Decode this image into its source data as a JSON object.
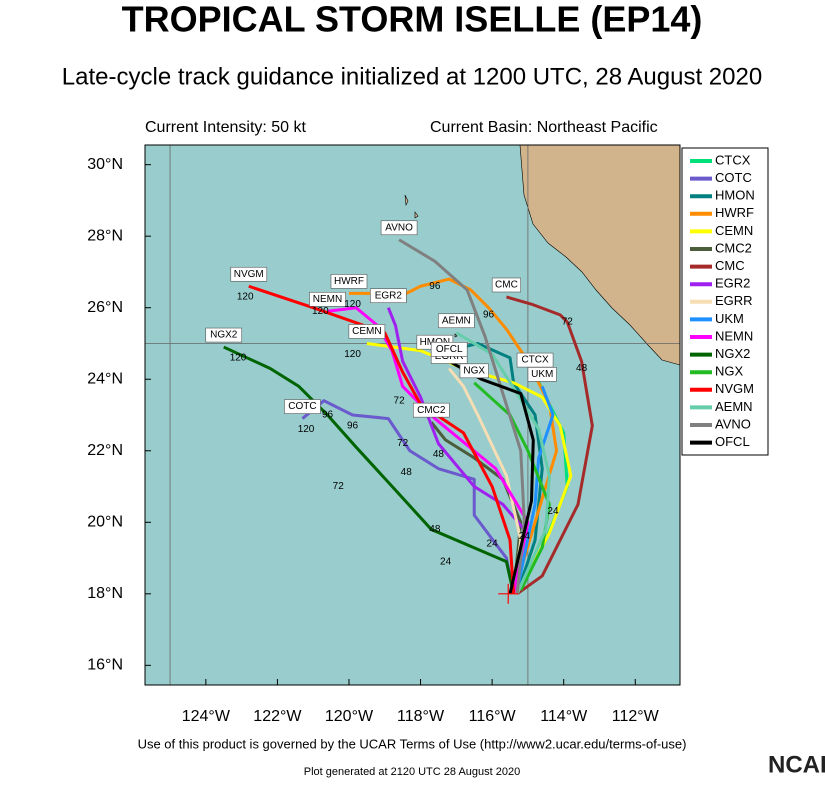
{
  "chart_data": {
    "type": "track",
    "title": "TROPICAL STORM ISELLE (EP14)",
    "subtitle": "Late-cycle track guidance initialized at 1200 UTC, 28 August 2020",
    "current_intensity": "Current Intensity: 50 kt",
    "current_basin": "Current Basin: Northeast Pacific",
    "footer": "Use of this product is governed by the UCAR Terms of Use (http://www2.ucar.edu/terms-of-use)",
    "generated": "Plot generated at 2120 UTC   28 August 2020",
    "logo": "NCAR",
    "xlim": [
      -125.7,
      -110.75
    ],
    "ylim": [
      15.45,
      30.55
    ],
    "xticks": [
      {
        "value": -124,
        "label": "124°W"
      },
      {
        "value": -122,
        "label": "122°W"
      },
      {
        "value": -120,
        "label": "120°W"
      },
      {
        "value": -118,
        "label": "118°W"
      },
      {
        "value": -116,
        "label": "116°W"
      },
      {
        "value": -114,
        "label": "114°W"
      },
      {
        "value": -112,
        "label": "112°W"
      }
    ],
    "yticks": [
      {
        "value": 16,
        "label": "16°N"
      },
      {
        "value": 18,
        "label": "18°N"
      },
      {
        "value": 20,
        "label": "20°N"
      },
      {
        "value": 22,
        "label": "22°N"
      },
      {
        "value": 24,
        "label": "24°N"
      },
      {
        "value": 26,
        "label": "26°N"
      },
      {
        "value": 28,
        "label": "28°N"
      },
      {
        "value": 30,
        "label": "30°N"
      }
    ],
    "grid_lon": [
      -125,
      -115
    ],
    "grid_lat": [
      25
    ],
    "initial_position": {
      "lon": -115.55,
      "lat": 18.0
    },
    "series": [
      {
        "name": "CTCX",
        "color": "#00e07a",
        "lon": [
          -115.2,
          -114.5,
          -113.9,
          -114.0,
          -114.6,
          -114.8
        ],
        "lat": [
          18.1,
          19.5,
          21.0,
          22.5,
          23.7,
          24.2
        ]
      },
      {
        "name": "COTC",
        "color": "#6a5acd",
        "lon": [
          -115.4,
          -115.6,
          -116.5,
          -116.5,
          -117.5,
          -118.3,
          -118.9,
          -119.9,
          -120.7,
          -121.3
        ],
        "lat": [
          18.0,
          19.0,
          20.2,
          21.2,
          21.5,
          22.0,
          22.9,
          23.0,
          23.4,
          22.9
        ]
      },
      {
        "name": "HMON",
        "color": "#008080",
        "lon": [
          -115.3,
          -114.8,
          -114.6,
          -114.8,
          -115.4,
          -115.5,
          -116.4,
          -117.6
        ],
        "lat": [
          18.0,
          19.5,
          21.5,
          23.0,
          23.9,
          24.6,
          25.0,
          24.7
        ]
      },
      {
        "name": "HWRF",
        "color": "#ff8c00",
        "lon": [
          -115.4,
          -114.8,
          -114.2,
          -114.4,
          -115.0,
          -115.6,
          -116.1,
          -116.6,
          -117.2,
          -118.0,
          -118.6,
          -119.4,
          -120.0
        ],
        "lat": [
          18.0,
          20.0,
          22.0,
          23.3,
          24.5,
          25.4,
          26.0,
          26.5,
          26.8,
          26.6,
          26.3,
          26.4,
          26.4
        ]
      },
      {
        "name": "CEMN",
        "color": "#ffff00",
        "lon": [
          -115.3,
          -114.4,
          -113.8,
          -114.1,
          -114.6,
          -115.4,
          -116.8,
          -118.0,
          -119.5
        ],
        "lat": [
          18.0,
          19.7,
          21.3,
          22.7,
          23.5,
          23.9,
          24.3,
          24.8,
          25.0
        ]
      },
      {
        "name": "CMC2",
        "color": "#4b5d3a",
        "lon": [
          -115.4,
          -115.2,
          -115.7,
          -116.5,
          -117.3,
          -117.7
        ],
        "lat": [
          18.0,
          20.0,
          21.2,
          21.8,
          22.3,
          22.8
        ]
      },
      {
        "name": "CMC",
        "color": "#a52a2a",
        "lon": [
          -115.3,
          -114.6,
          -113.6,
          -113.2,
          -113.5,
          -113.9,
          -114.1,
          -114.9,
          -115.6
        ],
        "lat": [
          18.0,
          18.5,
          20.5,
          22.7,
          24.5,
          25.6,
          25.8,
          26.1,
          26.3
        ]
      },
      {
        "name": "EGR2",
        "color": "#a020f0",
        "lon": [
          -115.4,
          -115.1,
          -115.7,
          -116.5,
          -117.5,
          -118.0,
          -118.5,
          -118.7,
          -118.9
        ],
        "lat": [
          18.0,
          19.8,
          20.5,
          21.0,
          22.2,
          23.5,
          24.5,
          25.5,
          26.0
        ]
      },
      {
        "name": "EGRR",
        "color": "#f5deb3",
        "lon": [
          -115.4,
          -115.2,
          -115.6,
          -116.4,
          -116.8,
          -117.2
        ],
        "lat": [
          18.0,
          19.5,
          21.3,
          23.0,
          23.8,
          24.3
        ]
      },
      {
        "name": "UKM",
        "color": "#1e90ff",
        "lon": [
          -115.3,
          -114.8,
          -114.7,
          -114.3,
          -114.6
        ],
        "lat": [
          18.1,
          20.5,
          21.8,
          23.0,
          23.8
        ]
      },
      {
        "name": "NEMN",
        "color": "#ff00ff",
        "lon": [
          -115.4,
          -115.0,
          -115.9,
          -117.6,
          -118.5,
          -118.8,
          -119.2,
          -119.8,
          -120.6
        ],
        "lat": [
          18.0,
          20.0,
          21.5,
          22.9,
          23.8,
          24.8,
          25.5,
          26.0,
          25.9
        ]
      },
      {
        "name": "NGX2",
        "color": "#006400",
        "lon": [
          -115.4,
          -115.6,
          -116.3,
          -117.7,
          -118.7,
          -119.8,
          -120.6,
          -121.4,
          -122.2,
          -123.5
        ],
        "lat": [
          18.0,
          18.9,
          19.2,
          19.8,
          20.9,
          22.1,
          23.0,
          23.8,
          24.3,
          24.9
        ]
      },
      {
        "name": "NGX",
        "color": "#22bb22",
        "lon": [
          -115.2,
          -114.6,
          -114.4,
          -115.0,
          -115.5,
          -116.5
        ],
        "lat": [
          18.1,
          19.3,
          20.5,
          22.0,
          23.0,
          23.9
        ]
      },
      {
        "name": "NVGM",
        "color": "#ff0000",
        "lon": [
          -115.4,
          -115.5,
          -116.0,
          -116.8,
          -118.0,
          -118.5,
          -119.0,
          -121.0,
          -122.8
        ],
        "lat": [
          18.0,
          19.5,
          21.0,
          22.5,
          23.3,
          24.2,
          25.3,
          26.0,
          26.6
        ]
      },
      {
        "name": "AEMN",
        "color": "#66cdaa",
        "lon": [
          -115.3,
          -114.5,
          -114.4,
          -114.7,
          -115.3,
          -116.0,
          -117.0
        ],
        "lat": [
          18.0,
          19.8,
          21.3,
          22.6,
          23.6,
          24.7,
          25.3
        ]
      },
      {
        "name": "AVNO",
        "color": "#808080",
        "lon": [
          -115.3,
          -115.1,
          -115.2,
          -115.7,
          -116.2,
          -116.7,
          -117.6,
          -118.6
        ],
        "lat": [
          18.0,
          20.0,
          22.0,
          23.6,
          25.2,
          26.5,
          27.3,
          27.9
        ]
      },
      {
        "name": "OFCL",
        "color": "#000000",
        "lon": [
          -115.5,
          -114.9,
          -114.85,
          -115.2,
          -116.3,
          -117.2
        ],
        "lat": [
          18.0,
          20.6,
          22.3,
          23.6,
          24.0,
          24.5
        ]
      }
    ],
    "annotations": [
      {
        "text": "120",
        "lon": -122.9,
        "lat": 26.3
      },
      {
        "text": "120",
        "lon": -120.8,
        "lat": 25.9
      },
      {
        "text": "120",
        "lon": -119.9,
        "lat": 26.1
      },
      {
        "text": "120",
        "lon": -119.9,
        "lat": 24.7
      },
      {
        "text": "120",
        "lon": -123.1,
        "lat": 24.6
      },
      {
        "text": "120",
        "lon": -121.2,
        "lat": 22.6
      },
      {
        "text": "96",
        "lon": -117.6,
        "lat": 26.6
      },
      {
        "text": "96",
        "lon": -116.1,
        "lat": 25.8
      },
      {
        "text": "96",
        "lon": -120.6,
        "lat": 23.0
      },
      {
        "text": "96",
        "lon": -119.9,
        "lat": 22.7
      },
      {
        "text": "72",
        "lon": -113.9,
        "lat": 25.6
      },
      {
        "text": "72",
        "lon": -118.6,
        "lat": 23.4
      },
      {
        "text": "72",
        "lon": -118.5,
        "lat": 22.2
      },
      {
        "text": "72",
        "lon": -120.3,
        "lat": 21.0
      },
      {
        "text": "48",
        "lon": -113.5,
        "lat": 24.3
      },
      {
        "text": "48",
        "lon": -117.5,
        "lat": 21.9
      },
      {
        "text": "48",
        "lon": -118.4,
        "lat": 21.4
      },
      {
        "text": "48",
        "lon": -117.6,
        "lat": 19.8
      },
      {
        "text": "24",
        "lon": -116.0,
        "lat": 19.4
      },
      {
        "text": "24",
        "lon": -117.3,
        "lat": 18.9
      },
      {
        "text": "24",
        "lon": -114.3,
        "lat": 20.3
      },
      {
        "text": "24",
        "lon": -115.1,
        "lat": 19.6
      }
    ]
  }
}
